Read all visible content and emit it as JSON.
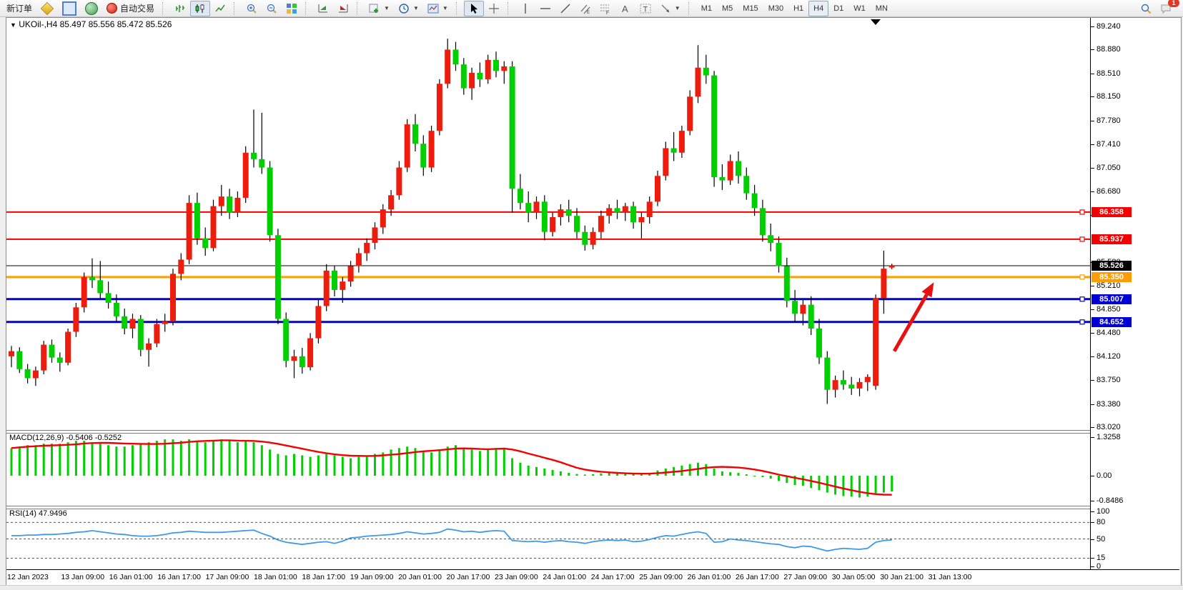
{
  "toolbar": {
    "new_order": "新订单",
    "auto_trading": "自动交易",
    "timeframes": [
      "M1",
      "M5",
      "M15",
      "M30",
      "H1",
      "H4",
      "D1",
      "W1",
      "MN"
    ],
    "active_timeframe": "H4",
    "notification_count": "1"
  },
  "chart": {
    "symbol": "UKOil-,H4",
    "ohlc_readout": "85.497 85.556 85.472 85.526"
  },
  "macd": {
    "label": "MACD(12,26,9)",
    "value_main": "-0.5406",
    "value_signal": "-0.5252"
  },
  "rsi": {
    "label": "RSI(14)",
    "value": "47.9496"
  },
  "chart_data": {
    "type": "candlestick",
    "symbol": "UKOil-",
    "timeframe": "H4",
    "up_color": "#ee1c0c",
    "down_color": "#00cf00",
    "wick_color": "#000000",
    "ylim": [
      83.02,
      89.24
    ],
    "y_ticks": [
      "89.240",
      "88.880",
      "88.510",
      "88.150",
      "87.780",
      "87.410",
      "87.050",
      "86.680",
      "86.310",
      "85.580",
      "85.210",
      "84.850",
      "84.480",
      "84.120",
      "83.750",
      "83.380",
      "83.020"
    ],
    "x_labels": [
      "12 Jan 2023",
      "13 Jan 09:00",
      "16 Jan 01:00",
      "16 Jan 17:00",
      "17 Jan 09:00",
      "18 Jan 01:00",
      "18 Jan 17:00",
      "19 Jan 09:00",
      "20 Jan 01:00",
      "20 Jan 17:00",
      "23 Jan 09:00",
      "24 Jan 01:00",
      "24 Jan 17:00",
      "25 Jan 09:00",
      "26 Jan 01:00",
      "26 Jan 17:00",
      "27 Jan 09:00",
      "30 Jan 05:00",
      "30 Jan 21:00",
      "31 Jan 13:00"
    ],
    "candles": [
      [
        84.12,
        84.28,
        83.95,
        84.2
      ],
      [
        84.2,
        84.26,
        83.86,
        83.92
      ],
      [
        83.92,
        84.0,
        83.7,
        83.78
      ],
      [
        83.78,
        83.96,
        83.66,
        83.9
      ],
      [
        83.9,
        84.36,
        83.84,
        84.3
      ],
      [
        84.3,
        84.38,
        84.02,
        84.1
      ],
      [
        84.1,
        84.18,
        83.88,
        84.02
      ],
      [
        84.02,
        84.55,
        83.98,
        84.5
      ],
      [
        84.5,
        84.95,
        84.42,
        84.88
      ],
      [
        84.88,
        85.42,
        84.8,
        85.35
      ],
      [
        85.35,
        85.64,
        85.18,
        85.3
      ],
      [
        85.3,
        85.6,
        85.02,
        85.1
      ],
      [
        85.1,
        85.28,
        84.86,
        84.95
      ],
      [
        84.95,
        85.08,
        84.66,
        84.74
      ],
      [
        84.74,
        84.86,
        84.46,
        84.55
      ],
      [
        84.55,
        84.78,
        84.4,
        84.7
      ],
      [
        84.7,
        84.76,
        84.12,
        84.22
      ],
      [
        84.22,
        84.4,
        83.96,
        84.32
      ],
      [
        84.32,
        84.7,
        84.26,
        84.62
      ],
      [
        84.62,
        84.78,
        84.5,
        84.66
      ],
      [
        84.66,
        85.48,
        84.6,
        85.4
      ],
      [
        85.4,
        85.72,
        85.3,
        85.62
      ],
      [
        85.62,
        86.62,
        85.55,
        86.5
      ],
      [
        86.5,
        86.66,
        85.85,
        85.95
      ],
      [
        85.95,
        86.12,
        85.68,
        85.8
      ],
      [
        85.8,
        86.55,
        85.75,
        86.45
      ],
      [
        86.45,
        86.78,
        86.3,
        86.6
      ],
      [
        86.6,
        86.72,
        86.25,
        86.35
      ],
      [
        86.35,
        86.68,
        86.28,
        86.58
      ],
      [
        86.58,
        87.38,
        86.5,
        87.28
      ],
      [
        87.28,
        87.95,
        87.05,
        87.18
      ],
      [
        87.18,
        87.9,
        86.95,
        87.05
      ],
      [
        87.05,
        87.15,
        85.9,
        86.0
      ],
      [
        86.0,
        86.1,
        84.62,
        84.7
      ],
      [
        84.7,
        84.8,
        83.95,
        84.05
      ],
      [
        84.05,
        84.22,
        83.78,
        84.12
      ],
      [
        84.12,
        84.25,
        83.85,
        83.95
      ],
      [
        83.95,
        84.48,
        83.9,
        84.4
      ],
      [
        84.4,
        85.0,
        84.32,
        84.9
      ],
      [
        84.9,
        85.55,
        84.82,
        85.45
      ],
      [
        85.45,
        85.52,
        85.05,
        85.15
      ],
      [
        85.15,
        85.35,
        84.95,
        85.28
      ],
      [
        85.28,
        85.6,
        85.2,
        85.52
      ],
      [
        85.52,
        85.8,
        85.42,
        85.72
      ],
      [
        85.72,
        85.95,
        85.6,
        85.88
      ],
      [
        85.88,
        86.2,
        85.78,
        86.12
      ],
      [
        86.12,
        86.48,
        86.02,
        86.4
      ],
      [
        86.4,
        86.7,
        86.3,
        86.62
      ],
      [
        86.62,
        87.15,
        86.55,
        87.05
      ],
      [
        87.05,
        87.8,
        86.98,
        87.72
      ],
      [
        87.72,
        87.88,
        87.3,
        87.42
      ],
      [
        87.42,
        87.55,
        86.92,
        87.05
      ],
      [
        87.05,
        87.7,
        86.98,
        87.62
      ],
      [
        87.62,
        88.42,
        87.55,
        88.35
      ],
      [
        88.35,
        89.05,
        88.28,
        88.88
      ],
      [
        88.88,
        89.0,
        88.55,
        88.65
      ],
      [
        88.65,
        88.75,
        88.18,
        88.28
      ],
      [
        88.28,
        88.6,
        88.1,
        88.52
      ],
      [
        88.52,
        88.68,
        88.3,
        88.42
      ],
      [
        88.42,
        88.8,
        88.35,
        88.72
      ],
      [
        88.72,
        88.85,
        88.45,
        88.55
      ],
      [
        88.55,
        88.7,
        88.35,
        88.62
      ],
      [
        88.62,
        88.7,
        86.35,
        86.72
      ],
      [
        86.72,
        86.95,
        86.4,
        86.5
      ],
      [
        86.5,
        86.68,
        86.2,
        86.35
      ],
      [
        86.35,
        86.6,
        86.25,
        86.52
      ],
      [
        86.52,
        86.62,
        85.92,
        86.05
      ],
      [
        86.05,
        86.35,
        85.98,
        86.28
      ],
      [
        86.28,
        86.48,
        86.15,
        86.4
      ],
      [
        86.4,
        86.55,
        86.2,
        86.3
      ],
      [
        86.3,
        86.42,
        85.95,
        86.05
      ],
      [
        86.05,
        86.15,
        85.76,
        85.85
      ],
      [
        85.85,
        86.12,
        85.78,
        86.05
      ],
      [
        86.05,
        86.38,
        85.95,
        86.3
      ],
      [
        86.3,
        86.48,
        86.18,
        86.42
      ],
      [
        86.42,
        86.55,
        86.25,
        86.35
      ],
      [
        86.35,
        86.5,
        86.22,
        86.45
      ],
      [
        86.45,
        86.52,
        86.1,
        86.2
      ],
      [
        86.2,
        86.35,
        85.95,
        86.28
      ],
      [
        86.28,
        86.6,
        86.18,
        86.52
      ],
      [
        86.52,
        87.0,
        86.45,
        86.92
      ],
      [
        86.92,
        87.45,
        86.85,
        87.35
      ],
      [
        87.35,
        87.6,
        87.15,
        87.28
      ],
      [
        87.28,
        87.7,
        87.2,
        87.62
      ],
      [
        87.62,
        88.25,
        87.55,
        88.15
      ],
      [
        88.15,
        88.95,
        88.05,
        88.6
      ],
      [
        88.6,
        88.8,
        88.35,
        88.48
      ],
      [
        88.48,
        88.55,
        86.75,
        86.9
      ],
      [
        86.9,
        87.1,
        86.7,
        86.85
      ],
      [
        86.85,
        87.25,
        86.78,
        87.15
      ],
      [
        87.15,
        87.3,
        86.8,
        86.92
      ],
      [
        86.92,
        87.05,
        86.55,
        86.65
      ],
      [
        86.65,
        86.78,
        86.3,
        86.42
      ],
      [
        86.42,
        86.55,
        85.9,
        86.0
      ],
      [
        86.0,
        86.18,
        85.75,
        85.88
      ],
      [
        85.88,
        85.98,
        85.42,
        85.52
      ],
      [
        85.52,
        85.65,
        84.88,
        84.98
      ],
      [
        84.98,
        85.15,
        84.65,
        84.78
      ],
      [
        84.78,
        85.0,
        84.6,
        84.92
      ],
      [
        84.92,
        85.05,
        84.45,
        84.55
      ],
      [
        84.55,
        84.7,
        84.0,
        84.1
      ],
      [
        84.1,
        84.2,
        83.38,
        83.6
      ],
      [
        83.6,
        83.82,
        83.48,
        83.75
      ],
      [
        83.75,
        83.9,
        83.6,
        83.68
      ],
      [
        83.68,
        83.8,
        83.52,
        83.62
      ],
      [
        83.62,
        83.78,
        83.5,
        83.72
      ],
      [
        83.72,
        83.84,
        83.58,
        83.8
      ],
      [
        83.66,
        85.08,
        83.6,
        85.02
      ],
      [
        85.02,
        85.76,
        84.78,
        85.48
      ],
      [
        85.497,
        85.556,
        85.472,
        85.526
      ]
    ],
    "price_lines": [
      {
        "price": 86.358,
        "label": "86.358",
        "color": "#f40000",
        "width": 2,
        "role": "resistance"
      },
      {
        "price": 85.937,
        "label": "85.937",
        "color": "#f40000",
        "width": 2,
        "role": "resistance"
      },
      {
        "price": 85.526,
        "label": "85.526",
        "color": "#000000",
        "width": 1,
        "role": "current-price"
      },
      {
        "price": 85.35,
        "label": "85.350",
        "color": "#ff9d00",
        "width": 3,
        "role": "level"
      },
      {
        "price": 85.007,
        "label": "85.007",
        "color": "#0000d4",
        "width": 3,
        "role": "support"
      },
      {
        "price": 84.652,
        "label": "84.652",
        "color": "#0000d4",
        "width": 3,
        "role": "support"
      }
    ],
    "macd": {
      "label": "MACD(12,26,9) -0.5406 -0.5252",
      "axis_ticks": [
        "1.3258",
        "0.00",
        "-0.8486"
      ],
      "ylim": [
        -0.8486,
        1.3258
      ],
      "histogram_color": "#00cf00",
      "signal_color": "#f40000",
      "values": [
        0.95,
        1,
        1.05,
        1.05,
        1.1,
        1.1,
        1.1,
        1.15,
        1.2,
        1.2,
        1.15,
        1.1,
        1.05,
        1,
        1,
        1.05,
        1.1,
        1.15,
        1.2,
        1.25,
        1.25,
        1.2,
        1.25,
        1.2,
        1.15,
        1.2,
        1.25,
        1.2,
        1.15,
        1.2,
        1.15,
        1.05,
        0.9,
        0.75,
        0.7,
        0.75,
        0.7,
        0.65,
        0.7,
        0.75,
        0.7,
        0.65,
        0.6,
        0.65,
        0.7,
        0.75,
        0.8,
        0.9,
        0.95,
        1,
        0.95,
        0.85,
        0.8,
        0.9,
        1,
        1.05,
        0.95,
        0.9,
        0.85,
        0.9,
        0.95,
        0.9,
        0.6,
        0.45,
        0.35,
        0.3,
        0.25,
        0.2,
        0.15,
        0.1,
        0.06,
        0.04,
        0.05,
        0.08,
        0.1,
        0.1,
        0.08,
        0.05,
        0.05,
        0.1,
        0.18,
        0.25,
        0.3,
        0.35,
        0.4,
        0.45,
        0.4,
        0.25,
        0.15,
        0.12,
        0.1,
        0.05,
        0,
        -0.05,
        -0.1,
        -0.18,
        -0.25,
        -0.32,
        -0.35,
        -0.42,
        -0.5,
        -0.58,
        -0.65,
        -0.7,
        -0.72,
        -0.75,
        -0.72,
        -0.65,
        -0.58,
        -0.5406
      ]
    },
    "rsi": {
      "label": "RSI(14) 47.9496",
      "axis_ticks": [
        "100",
        "80",
        "50",
        "15",
        "0"
      ],
      "levels": [
        80,
        50,
        15
      ],
      "line_color": "#3d9ae8",
      "values": [
        56,
        56,
        57,
        57,
        58,
        58,
        59,
        60,
        62,
        63,
        65,
        63,
        61,
        59,
        58,
        56,
        55,
        55,
        56,
        58,
        61,
        62,
        64,
        63,
        62,
        62,
        62,
        63,
        64,
        65,
        66,
        60,
        55,
        48,
        44,
        42,
        40,
        42,
        44,
        45,
        42,
        46,
        52,
        53,
        55,
        56,
        57,
        58,
        60,
        63,
        61,
        59,
        60,
        62,
        68,
        66,
        63,
        64,
        62,
        64,
        65,
        64,
        47,
        46,
        45,
        46,
        44,
        46,
        47,
        45,
        44,
        42,
        45,
        47,
        48,
        47,
        48,
        45,
        46,
        49,
        53,
        56,
        55,
        58,
        61,
        63,
        60,
        44,
        45,
        50,
        48,
        47,
        45,
        43,
        41,
        40,
        36,
        34,
        37,
        36,
        32,
        28,
        31,
        33,
        32,
        31,
        33,
        44,
        47,
        48
      ]
    },
    "annotation_arrow": {
      "color": "#e81010",
      "from": {
        "index": 109.3,
        "price": 84.2
      },
      "to": {
        "index": 114.2,
        "price": 85.27
      }
    }
  }
}
